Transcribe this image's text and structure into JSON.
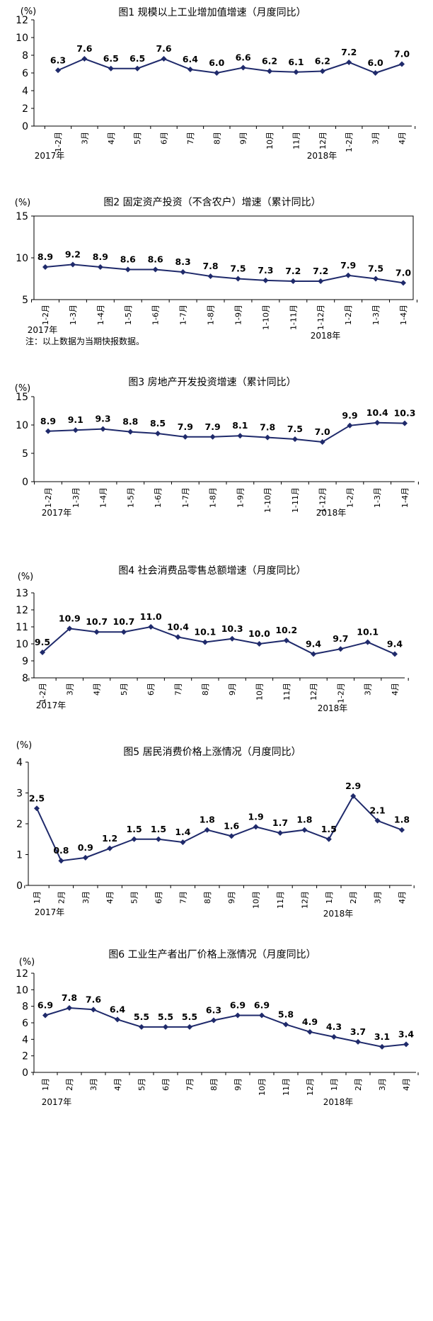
{
  "chart_data": [
    {
      "type": "line",
      "title": "图1   规模以上工业增加值增速（月度同比）",
      "unit": "(%)",
      "ylim": [
        0,
        12
      ],
      "yticks": [
        0,
        2,
        4,
        6,
        8,
        10,
        12
      ],
      "categories": [
        "1-2月",
        "3月",
        "4月",
        "5月",
        "6月",
        "7月",
        "8月",
        "9月",
        "10月",
        "11月",
        "12月",
        "1-2月",
        "3月",
        "4月"
      ],
      "values": [
        6.3,
        7.6,
        6.5,
        6.5,
        7.6,
        6.4,
        6.0,
        6.6,
        6.2,
        6.1,
        6.2,
        7.2,
        6.0,
        7.0
      ],
      "year_labels": [
        "2017年",
        "2018年"
      ],
      "color": "#1f2a6b"
    },
    {
      "type": "line",
      "title": "图2   固定资产投资（不含农户）增速（累计同比）",
      "unit": "(%)",
      "ylim": [
        5,
        15
      ],
      "yticks": [
        5,
        10,
        15
      ],
      "categories": [
        "1-2月",
        "1-3月",
        "1-4月",
        "1-5月",
        "1-6月",
        "1-7月",
        "1-8月",
        "1-9月",
        "1-10月",
        "1-11月",
        "1-12月",
        "1-2月",
        "1-3月",
        "1-4月"
      ],
      "values": [
        8.9,
        9.2,
        8.9,
        8.6,
        8.6,
        8.3,
        7.8,
        7.5,
        7.3,
        7.2,
        7.2,
        7.9,
        7.5,
        7.0
      ],
      "year_labels": [
        "2017年",
        "2018年"
      ],
      "note": "注：以上数据为当期快报数据。",
      "color": "#1f2a6b"
    },
    {
      "type": "line",
      "title": "图3   房地产开发投资增速（累计同比）",
      "unit": "(%)",
      "ylim": [
        0,
        15
      ],
      "yticks": [
        0,
        5,
        10,
        15
      ],
      "categories": [
        "1-2月",
        "1-3月",
        "1-4月",
        "1-5月",
        "1-6月",
        "1-7月",
        "1-8月",
        "1-9月",
        "1-10月",
        "1-11月",
        "1-12月",
        "1-2月",
        "1-3月",
        "1-4月"
      ],
      "values": [
        8.9,
        9.1,
        9.3,
        8.8,
        8.5,
        7.9,
        7.9,
        8.1,
        7.8,
        7.5,
        7.0,
        9.9,
        10.4,
        10.3
      ],
      "year_labels": [
        "2017年",
        "2018年"
      ],
      "color": "#1f2a6b"
    },
    {
      "type": "line",
      "title": "图4   社会消费品零售总额增速（月度同比）",
      "unit": "(%)",
      "ylim": [
        8,
        13
      ],
      "yticks": [
        8,
        9,
        10,
        11,
        12,
        13
      ],
      "categories": [
        "1-2月",
        "3月",
        "4月",
        "5月",
        "6月",
        "7月",
        "8月",
        "9月",
        "10月",
        "11月",
        "12月",
        "1-2月",
        "3月",
        "4月"
      ],
      "values": [
        9.5,
        10.9,
        10.7,
        10.7,
        11.0,
        10.4,
        10.1,
        10.3,
        10.0,
        10.2,
        9.4,
        9.7,
        10.1,
        9.4
      ],
      "year_labels": [
        "2017年",
        "2018年"
      ],
      "color": "#1f2a6b"
    },
    {
      "type": "line",
      "title": "图5   居民消费价格上涨情况（月度同比）",
      "unit": "(%)",
      "ylim": [
        0,
        4
      ],
      "yticks": [
        0,
        1,
        2,
        3,
        4
      ],
      "categories": [
        "1月",
        "2月",
        "3月",
        "4月",
        "5月",
        "6月",
        "7月",
        "8月",
        "9月",
        "10月",
        "11月",
        "12月",
        "1月",
        "2月",
        "3月",
        "4月"
      ],
      "values": [
        2.5,
        0.8,
        0.9,
        1.2,
        1.5,
        1.5,
        1.4,
        1.8,
        1.6,
        1.9,
        1.7,
        1.8,
        1.5,
        2.9,
        2.1,
        1.8
      ],
      "year_labels": [
        "2017年",
        "2018年"
      ],
      "color": "#1f2a6b"
    },
    {
      "type": "line",
      "title": "图6 工业生产者出厂价格上涨情况（月度同比）",
      "unit": "(%)",
      "ylim": [
        0,
        12
      ],
      "yticks": [
        0,
        2,
        4,
        6,
        8,
        10,
        12
      ],
      "categories": [
        "1月",
        "2月",
        "3月",
        "4月",
        "5月",
        "6月",
        "7月",
        "8月",
        "9月",
        "10月",
        "11月",
        "12月",
        "1月",
        "2月",
        "3月",
        "4月"
      ],
      "values": [
        6.9,
        7.8,
        7.6,
        6.4,
        5.5,
        5.5,
        5.5,
        6.3,
        6.9,
        6.9,
        5.8,
        4.9,
        4.3,
        3.7,
        3.1,
        3.4
      ],
      "year_labels": [
        "2017年",
        "2018年"
      ],
      "color": "#1f2a6b"
    }
  ]
}
